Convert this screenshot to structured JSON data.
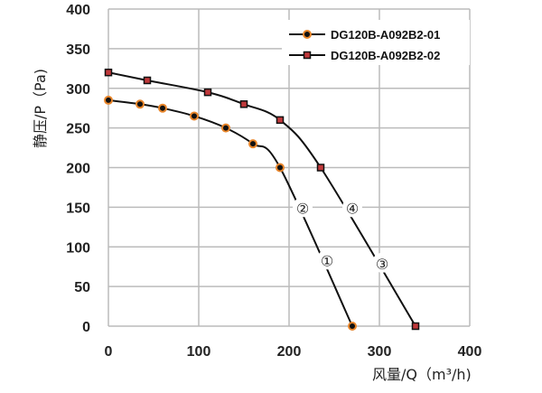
{
  "chart_data": {
    "type": "line",
    "xlabel": "风量/Q（m³/h)",
    "ylabel": "静压/P（Pa)",
    "xlim": [
      0,
      400
    ],
    "ylim": [
      0,
      400
    ],
    "xticks": [
      "0",
      "100",
      "200",
      "300",
      "400"
    ],
    "yticks": [
      "0",
      "50",
      "100",
      "150",
      "200",
      "250",
      "300",
      "350",
      "400"
    ],
    "grid": true,
    "legend_position": "top-right",
    "series": [
      {
        "name": "DG120B-A092B2-01",
        "marker": "circle",
        "marker_color": "#e8852a",
        "line_color": "#111111",
        "x": [
          0,
          35,
          60,
          95,
          130,
          160,
          190,
          270
        ],
        "y": [
          285,
          280,
          275,
          265,
          250,
          230,
          200,
          0
        ]
      },
      {
        "name": "DG120B-A092B2-02",
        "marker": "square",
        "marker_color": "#c0393b",
        "line_color": "#111111",
        "x": [
          0,
          43,
          110,
          150,
          190,
          235,
          340
        ],
        "y": [
          320,
          310,
          295,
          280,
          260,
          200,
          0
        ]
      }
    ],
    "annotations": [
      {
        "text": "②",
        "x": 215,
        "y": 150
      },
      {
        "text": "④",
        "x": 270,
        "y": 150
      },
      {
        "text": "①",
        "x": 242,
        "y": 84
      },
      {
        "text": "③",
        "x": 303,
        "y": 80
      }
    ]
  }
}
